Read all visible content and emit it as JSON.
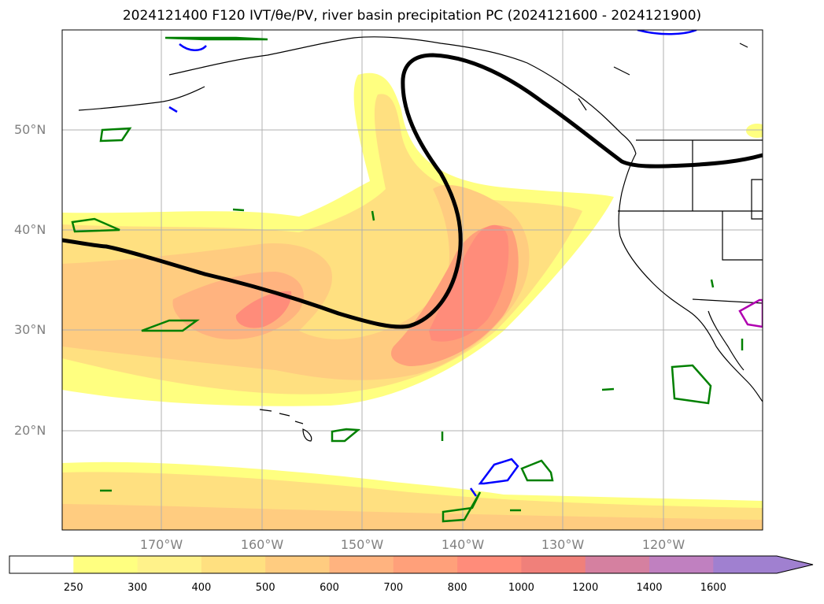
{
  "title": "2024121400 F120 IVT/θe/PV, river basin precipitation PC (2024121600 - 2024121900)",
  "map": {
    "lat_labels": [
      "50°N",
      "40°N",
      "30°N",
      "20°N"
    ],
    "lon_labels": [
      "170°W",
      "160°W",
      "150°W",
      "140°W",
      "130°W",
      "120°W"
    ],
    "colors": {
      "land_outline": "#000000",
      "grid": "#b0b0b0",
      "pv_contour": "#000000",
      "green_contour": "#008000",
      "blue_contour": "#0000ff",
      "magenta_contour": "#b000b0"
    }
  },
  "colorbar": {
    "labels": [
      "250",
      "300",
      "400",
      "500",
      "600",
      "700",
      "800",
      "1000",
      "1200",
      "1400",
      "1600"
    ],
    "colors": [
      "#ffffff",
      "#ffff80",
      "#fff28a",
      "#ffe080",
      "#ffcc80",
      "#ffb37f",
      "#ffa07a",
      "#ff8c7a",
      "#f0807a",
      "#d580a0",
      "#c080c0",
      "#a080d0"
    ]
  }
}
